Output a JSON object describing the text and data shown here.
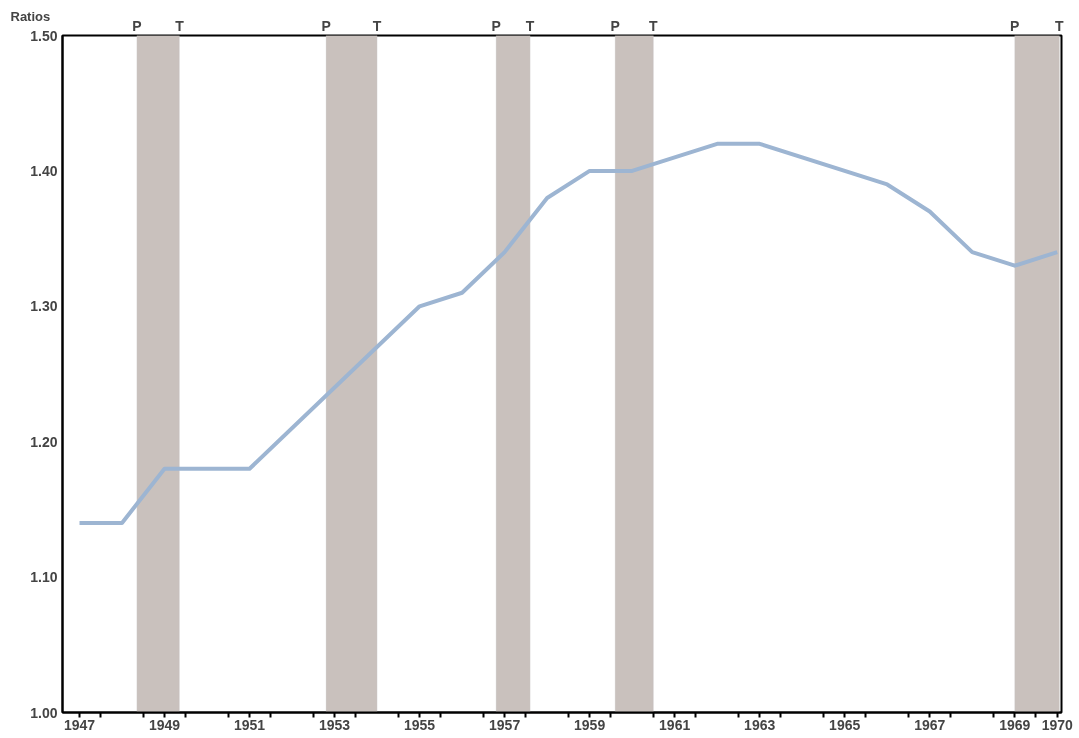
{
  "chart_data": {
    "type": "line",
    "ylabel": "Ratios",
    "x": [
      1947,
      1948,
      1949,
      1951,
      1955,
      1956,
      1957,
      1958,
      1959,
      1960,
      1962,
      1963,
      1966,
      1967,
      1968,
      1969,
      1970
    ],
    "series": [
      {
        "color": "#9db5d2",
        "values": [
          1.14,
          1.14,
          1.18,
          1.18,
          1.3,
          1.31,
          1.34,
          1.38,
          1.4,
          1.4,
          1.42,
          1.42,
          1.39,
          1.37,
          1.34,
          1.33,
          1.34
        ]
      }
    ],
    "xlim": [
      1946.6,
      1970.1
    ],
    "ylim": [
      1.0,
      1.5
    ],
    "xticks": [
      1947,
      {
        "value": 1947.5,
        "label": null
      },
      {
        "value": 1948.5,
        "label": null
      },
      1949,
      {
        "value": 1949.5,
        "label": null
      },
      {
        "value": 1950.5,
        "label": null
      },
      1951,
      {
        "value": 1951.5,
        "label": null
      },
      {
        "value": 1952.5,
        "label": null
      },
      1953,
      {
        "value": 1953.5,
        "label": null
      },
      {
        "value": 1954.5,
        "label": null
      },
      1955,
      {
        "value": 1955.5,
        "label": null
      },
      {
        "value": 1956.5,
        "label": null
      },
      1957,
      {
        "value": 1957.5,
        "label": null
      },
      {
        "value": 1958.5,
        "label": null
      },
      1959,
      {
        "value": 1959.5,
        "label": null
      },
      {
        "value": 1960.5,
        "label": null
      },
      1961,
      {
        "value": 1961.5,
        "label": null
      },
      {
        "value": 1962.5,
        "label": null
      },
      1963,
      {
        "value": 1963.5,
        "label": null
      },
      {
        "value": 1964.5,
        "label": null
      },
      1965,
      {
        "value": 1965.5,
        "label": null
      },
      {
        "value": 1966.5,
        "label": null
      },
      1967,
      {
        "value": 1967.5,
        "label": null
      },
      {
        "value": 1968.5,
        "label": null
      },
      1969,
      {
        "value": 1969.5,
        "label": null
      },
      1970
    ],
    "yticks": [
      {
        "value": 1.0,
        "label": "1.00"
      },
      {
        "value": 1.1,
        "label": "1.10"
      },
      {
        "value": 1.2,
        "label": "1.20"
      },
      {
        "value": 1.3,
        "label": "1.30"
      },
      {
        "value": 1.4,
        "label": "1.40"
      },
      {
        "value": 1.5,
        "label": "1.50"
      }
    ],
    "bands": [
      {
        "axis": "x",
        "from": 1948.35,
        "to": 1949.35,
        "color": "#c9c1bd"
      },
      {
        "axis": "x",
        "from": 1952.8,
        "to": 1954.0,
        "color": "#c9c1bd"
      },
      {
        "axis": "x",
        "from": 1956.8,
        "to": 1957.6,
        "color": "#c9c1bd"
      },
      {
        "axis": "x",
        "from": 1959.6,
        "to": 1960.5,
        "color": "#c9c1bd"
      },
      {
        "axis": "x",
        "from": 1969.0,
        "to": 1970.05,
        "color": "#c9c1bd"
      }
    ],
    "annotations": [
      "P",
      "T",
      "P",
      "T",
      "P",
      "T",
      "P",
      "T",
      "P",
      "T"
    ],
    "grid": false,
    "line_style": "solid",
    "marker": "none"
  }
}
